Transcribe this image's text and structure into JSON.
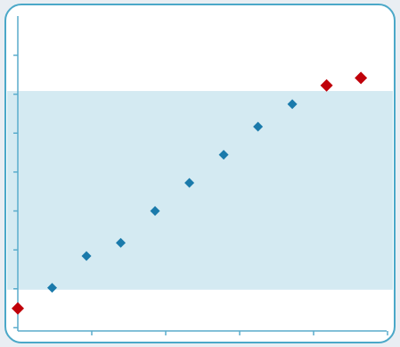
{
  "chart_data": {
    "type": "scatter",
    "title": "",
    "xlabel": "",
    "ylabel": "",
    "x_ticks_count": 5,
    "y_ticks_count": 8,
    "band": {
      "y_low": 0.5,
      "y_high": 5.8
    },
    "colors": {
      "in_band": "#1a7aab",
      "out_of_band": "#c0000a",
      "band_fill": "#d4eaf2",
      "axis": "#5aaccc",
      "frame_border": "#4ba8c8",
      "panel_bg": "#ffffff"
    },
    "series": [
      {
        "points": [
          {
            "x": 0.0,
            "y": 0.0
          },
          {
            "x": 0.8,
            "y": 0.55
          },
          {
            "x": 1.6,
            "y": 1.4
          },
          {
            "x": 2.4,
            "y": 1.75
          },
          {
            "x": 3.2,
            "y": 2.6
          },
          {
            "x": 4.0,
            "y": 3.35
          },
          {
            "x": 4.8,
            "y": 4.1
          },
          {
            "x": 5.6,
            "y": 4.85
          },
          {
            "x": 6.4,
            "y": 5.45
          },
          {
            "x": 7.2,
            "y": 5.95
          },
          {
            "x": 8.0,
            "y": 6.15
          }
        ]
      }
    ],
    "xlim": [
      0,
      8.6
    ],
    "ylim": [
      -0.6,
      7.8
    ],
    "grid": false,
    "legend": "none"
  }
}
